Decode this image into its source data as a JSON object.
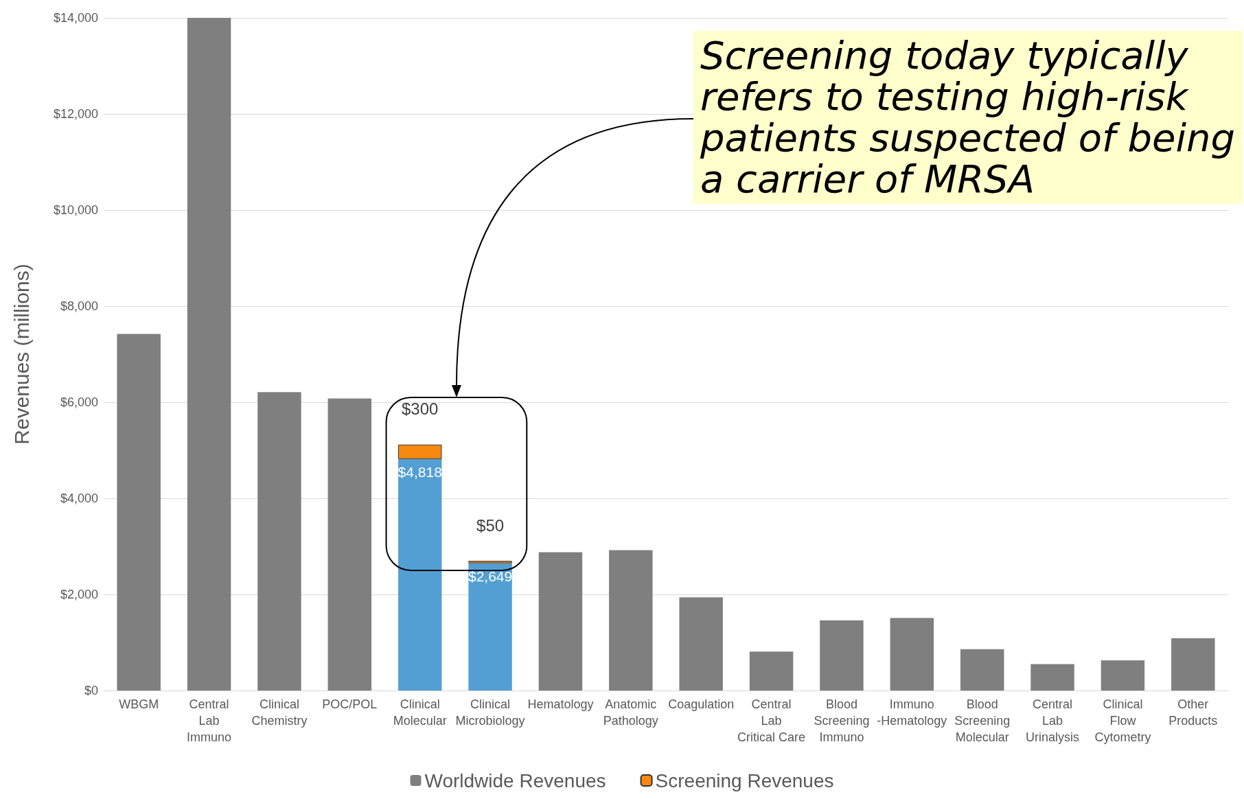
{
  "chart_data": {
    "type": "bar",
    "stacked": true,
    "categories": [
      "WBGM",
      "Central\nLab\nImmuno",
      "Clinical\nChemistry",
      "POC/POL",
      "Clinical\nMolecular",
      "Clinical\nMicrobiology",
      "Hematology",
      "Anatomic\nPathology",
      "Coagulation",
      "Central\nLab\nCritical Care",
      "Blood\nScreening\nImmuno",
      "Immuno\n-Hematology",
      "Blood\nScreening\nMolecular",
      "Central\nLab\nUrinalysis",
      "Clinical\nFlow\nCytometry",
      "Other\nProducts"
    ],
    "series": [
      {
        "name": "Worldwide Revenues",
        "color": "#7f7f7f",
        "colors": [
          "#7f7f7f",
          "#7f7f7f",
          "#7f7f7f",
          "#7f7f7f",
          "#539fd3",
          "#539fd3",
          "#7f7f7f",
          "#7f7f7f",
          "#7f7f7f",
          "#7f7f7f",
          "#7f7f7f",
          "#7f7f7f",
          "#7f7f7f",
          "#7f7f7f",
          "#7f7f7f",
          "#7f7f7f"
        ],
        "values": [
          7420,
          14000,
          6210,
          6080,
          4818,
          2649,
          2880,
          2920,
          1940,
          810,
          1460,
          1510,
          860,
          550,
          630,
          1090
        ],
        "value_labels": [
          null,
          null,
          null,
          null,
          "$4,818",
          "$2,649",
          null,
          null,
          null,
          null,
          null,
          null,
          null,
          null,
          null,
          null
        ]
      },
      {
        "name": "Screening Revenues",
        "color": "#f7880f",
        "values": [
          null,
          null,
          null,
          null,
          300,
          50,
          null,
          null,
          null,
          null,
          null,
          null,
          null,
          null,
          null,
          null
        ],
        "value_labels": [
          null,
          null,
          null,
          null,
          "$300",
          "$50",
          null,
          null,
          null,
          null,
          null,
          null,
          null,
          null,
          null,
          null
        ]
      }
    ],
    "ylabel": "Revenues (millions)",
    "ylim": [
      0,
      14000
    ],
    "yticks": [
      {
        "value": 0,
        "label": "$0"
      },
      {
        "value": 2000,
        "label": "$2,000"
      },
      {
        "value": 4000,
        "label": "$4,000"
      },
      {
        "value": 6000,
        "label": "$6,000"
      },
      {
        "value": 8000,
        "label": "$8,000"
      },
      {
        "value": 10000,
        "label": "$10,000"
      },
      {
        "value": 12000,
        "label": "$12,000"
      },
      {
        "value": 14000,
        "label": "$14,000"
      }
    ],
    "grid": "y",
    "legend": "bottom",
    "annotations": [
      "Screening today typically refers to testing high-risk patients suspected of being a carrier of MRSA"
    ]
  }
}
